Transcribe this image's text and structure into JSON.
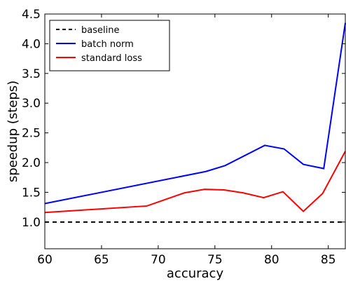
{
  "chart_data": {
    "type": "line",
    "title": "",
    "xlabel": "accuracy",
    "ylabel": "speedup (steps)",
    "xlim": [
      60,
      86.5
    ],
    "ylim": [
      0.55,
      4.5
    ],
    "xticks": [
      60,
      65,
      70,
      75,
      80,
      85
    ],
    "yticks": [
      1.0,
      1.5,
      2.0,
      2.5,
      3.0,
      3.5,
      4.0,
      4.5
    ],
    "grid": false,
    "legend_position": "top-left",
    "series": [
      {
        "name": "baseline",
        "color": "#000000",
        "style": "dashed",
        "x": [
          60,
          86.5
        ],
        "y": [
          1.0,
          1.0
        ]
      },
      {
        "name": "batch norm",
        "color": "#0000ff",
        "style": "solid",
        "x": [
          60,
          74.2,
          75.9,
          79.4,
          81.1,
          82.8,
          84.6,
          86.5
        ],
        "y": [
          1.31,
          1.85,
          1.95,
          2.29,
          2.23,
          1.97,
          1.9,
          4.35
        ]
      },
      {
        "name": "standard loss",
        "color": "#ff0000",
        "style": "solid",
        "x": [
          60,
          69.0,
          72.3,
          74.1,
          75.8,
          77.5,
          79.3,
          81.0,
          82.8,
          84.5,
          86.5
        ],
        "y": [
          1.16,
          1.27,
          1.49,
          1.55,
          1.54,
          1.49,
          1.41,
          1.51,
          1.18,
          1.48,
          2.19
        ]
      }
    ]
  }
}
